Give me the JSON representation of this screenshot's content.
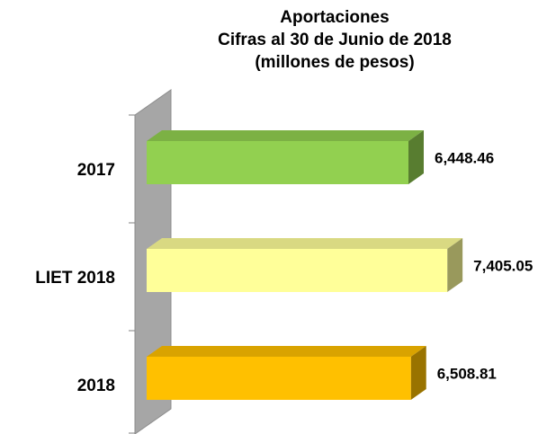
{
  "chart_data": {
    "type": "bar3d_horizontal",
    "title": [
      "Aportaciones",
      "Cifras al 30 de Junio de 2018",
      "(millones de pesos)"
    ],
    "categories": [
      "2017",
      "LIET 2018",
      "2018"
    ],
    "values": [
      6448.46,
      7405.05,
      6508.81
    ],
    "value_labels": [
      "6,448.46",
      "7,405.05",
      "6,508.81"
    ],
    "colors": [
      "#92d050",
      "#ffff99",
      "#ffc000"
    ],
    "xlim": [
      0,
      8000
    ]
  }
}
